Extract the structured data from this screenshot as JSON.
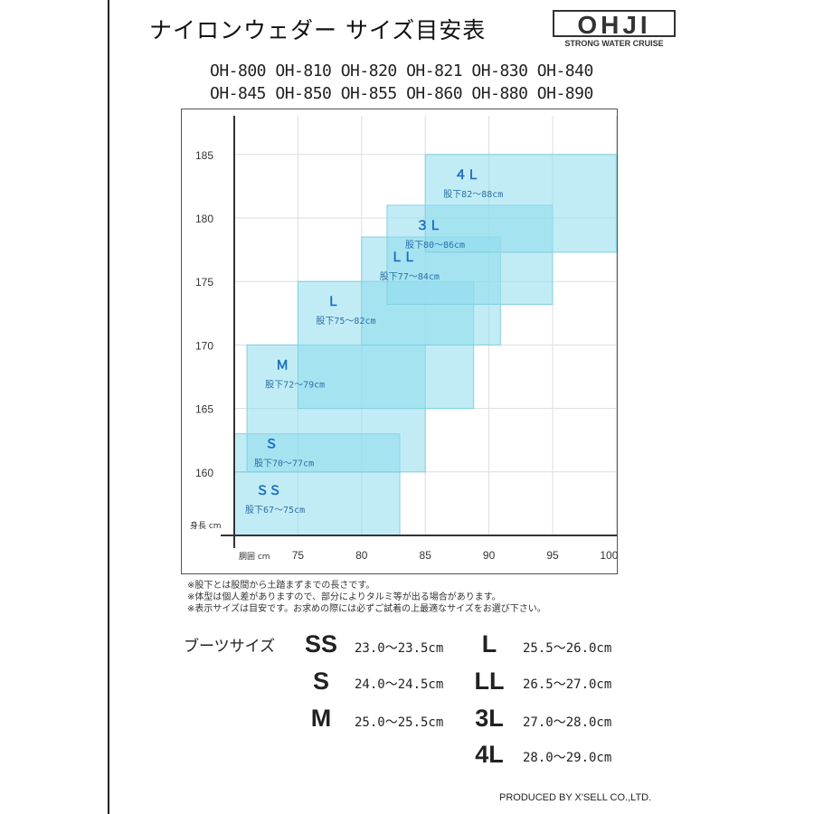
{
  "header": {
    "title": "ナイロンウェダー サイズ目安表",
    "logo_text": "OHJI",
    "logo_subtext": "STRONG WATER CRUISE"
  },
  "models": {
    "row1": "OH-800 OH-810 OH-820 OH-821 OH-830 OH-840",
    "row2": "OH-845 OH-850 OH-855 OH-860 OH-880 OH-890"
  },
  "chart_data": {
    "type": "range-rectangles",
    "xlabel": "胴囲 cm",
    "ylabel": "身長 cm",
    "x_ticks": [
      "75",
      "80",
      "85",
      "90",
      "95",
      "100"
    ],
    "y_ticks": [
      "160",
      "165",
      "170",
      "175",
      "180",
      "185"
    ],
    "xlim": [
      70,
      100
    ],
    "ylim": [
      155,
      189
    ],
    "grid": true,
    "fill_color": "#8fdcec",
    "label_color": "#1a6fc0",
    "sizes": [
      {
        "name": "ＳＳ",
        "inseam": "股下67〜75cm",
        "waist": [
          70,
          83
        ],
        "height": [
          155,
          160
        ]
      },
      {
        "name": "Ｓ",
        "inseam": "股下70〜77cm",
        "waist": [
          70,
          83
        ],
        "height": [
          160,
          163
        ]
      },
      {
        "name": "Ｍ",
        "inseam": "股下72〜79cm",
        "waist": [
          71,
          85
        ],
        "height": [
          160,
          170
        ]
      },
      {
        "name": "Ｌ",
        "inseam": "股下75〜82cm",
        "waist": [
          75,
          88.8
        ],
        "height": [
          165,
          175
        ]
      },
      {
        "name": "ＬＬ",
        "inseam": "股下77〜84cm",
        "waist": [
          80,
          90.9
        ],
        "height": [
          170,
          178.5
        ]
      },
      {
        "name": "３Ｌ",
        "inseam": "股下80〜86cm",
        "waist": [
          82,
          95
        ],
        "height": [
          173.2,
          181
        ]
      },
      {
        "name": "４Ｌ",
        "inseam": "股下82〜88cm",
        "waist": [
          85,
          100
        ],
        "height": [
          177.3,
          185
        ]
      }
    ]
  },
  "notes": [
    "※股下とは股間から土踏まずまでの長さです。",
    "※体型は個人差がありますので、部分によりタルミ等が出る場合があります。",
    "※表示サイズは目安です。お求めの際には必ずご試着の上最適なサイズをお選び下さい。"
  ],
  "boots": {
    "label": "ブーツサイズ",
    "items": [
      {
        "size": "SS",
        "range": "23.0〜23.5cm"
      },
      {
        "size": "S",
        "range": "24.0〜24.5cm"
      },
      {
        "size": "M",
        "range": "25.0〜25.5cm"
      },
      {
        "size": "L",
        "range": "25.5〜26.0cm"
      },
      {
        "size": "LL",
        "range": "26.5〜27.0cm"
      },
      {
        "size": "3L",
        "range": "27.0〜28.0cm"
      },
      {
        "size": "4L",
        "range": "28.0〜29.0cm"
      }
    ]
  },
  "footer": "PRODUCED BY X'SELL CO.,LTD."
}
